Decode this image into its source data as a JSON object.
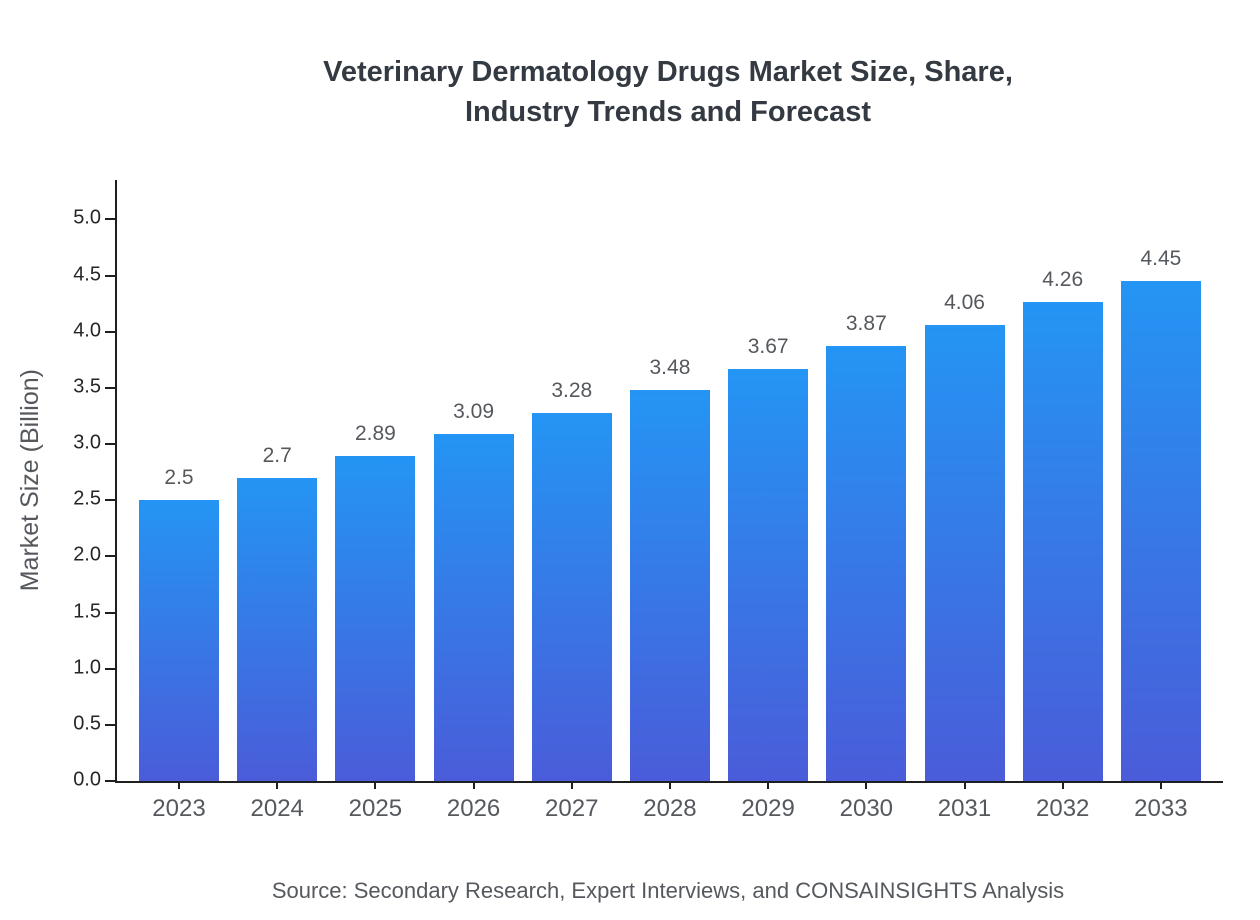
{
  "chart_data": {
    "type": "bar",
    "title": "Veterinary Dermatology Drugs Market Size, Share, Industry Trends and Forecast",
    "title_line1": "Veterinary Dermatology Drugs Market Size, Share,",
    "title_line2": "Industry Trends and Forecast",
    "xlabel": "",
    "ylabel": "Market Size (Billion)",
    "categories": [
      "2023",
      "2024",
      "2025",
      "2026",
      "2027",
      "2028",
      "2029",
      "2030",
      "2031",
      "2032",
      "2033"
    ],
    "values": [
      2.5,
      2.7,
      2.89,
      3.09,
      3.28,
      3.48,
      3.67,
      3.87,
      4.06,
      4.26,
      4.45
    ],
    "value_labels": [
      "2.5",
      "2.7",
      "2.89",
      "3.09",
      "3.28",
      "3.48",
      "3.67",
      "3.87",
      "4.06",
      "4.26",
      "4.45"
    ],
    "y_ticks": [
      0.0,
      0.5,
      1.0,
      1.5,
      2.0,
      2.5,
      3.0,
      3.5,
      4.0,
      4.5,
      5.0
    ],
    "y_tick_labels": [
      "0.0",
      "0.5",
      "1.0",
      "1.5",
      "2.0",
      "2.5",
      "3.0",
      "3.5",
      "4.0",
      "4.5",
      "5.0"
    ],
    "ylim": [
      0,
      5.35
    ],
    "grid": false,
    "legend": null,
    "bar_gradient_top": "#2495f4",
    "bar_gradient_bottom": "#4a5cd9",
    "source": "Source: Secondary Research, Expert Interviews, and CONSAINSIGHTS Analysis"
  }
}
